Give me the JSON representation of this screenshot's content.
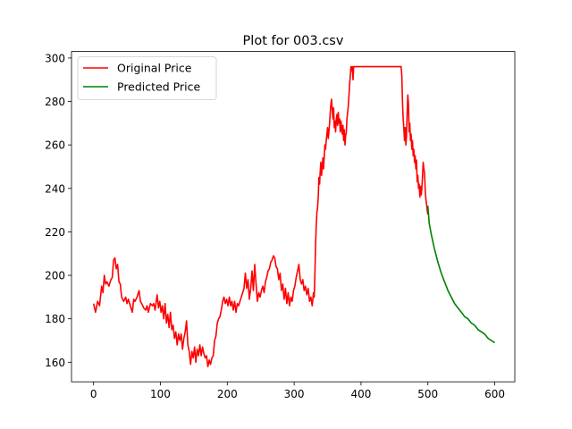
{
  "chart_data": {
    "type": "line",
    "title": "Plot for 003.csv",
    "xlabel": "",
    "ylabel": "",
    "xlim": [
      -33,
      630
    ],
    "ylim": [
      151,
      303
    ],
    "xticks": [
      0,
      100,
      200,
      300,
      400,
      500,
      600
    ],
    "yticks": [
      160,
      180,
      200,
      220,
      240,
      260,
      280,
      300
    ],
    "grid": false,
    "legend_position": "top-left",
    "series": [
      {
        "name": "Original Price",
        "color": "#ff0000",
        "points": [
          [
            0,
            187
          ],
          [
            3,
            183
          ],
          [
            6,
            188
          ],
          [
            9,
            186
          ],
          [
            12,
            195
          ],
          [
            14,
            192
          ],
          [
            16,
            200
          ],
          [
            18,
            196
          ],
          [
            20,
            197
          ],
          [
            23,
            195
          ],
          [
            26,
            198
          ],
          [
            28,
            199
          ],
          [
            30,
            207
          ],
          [
            32,
            208
          ],
          [
            34,
            203
          ],
          [
            36,
            205
          ],
          [
            38,
            197
          ],
          [
            40,
            196
          ],
          [
            42,
            190
          ],
          [
            45,
            188
          ],
          [
            48,
            190
          ],
          [
            50,
            187
          ],
          [
            52,
            189
          ],
          [
            55,
            186
          ],
          [
            58,
            183
          ],
          [
            60,
            189
          ],
          [
            62,
            188
          ],
          [
            65,
            190
          ],
          [
            68,
            193
          ],
          [
            70,
            188
          ],
          [
            72,
            187
          ],
          [
            75,
            185
          ],
          [
            78,
            184
          ],
          [
            80,
            186
          ],
          [
            82,
            183
          ],
          [
            85,
            187
          ],
          [
            88,
            186
          ],
          [
            90,
            187
          ],
          [
            92,
            184
          ],
          [
            95,
            191
          ],
          [
            97,
            185
          ],
          [
            99,
            188
          ],
          [
            101,
            183
          ],
          [
            103,
            186
          ],
          [
            105,
            180
          ],
          [
            107,
            187
          ],
          [
            109,
            178
          ],
          [
            111,
            182
          ],
          [
            113,
            176
          ],
          [
            115,
            183
          ],
          [
            117,
            175
          ],
          [
            119,
            177
          ],
          [
            121,
            171
          ],
          [
            123,
            174
          ],
          [
            125,
            168
          ],
          [
            127,
            173
          ],
          [
            129,
            170
          ],
          [
            131,
            173
          ],
          [
            133,
            166
          ],
          [
            135,
            171
          ],
          [
            137,
            174
          ],
          [
            139,
            179
          ],
          [
            141,
            168
          ],
          [
            143,
            165
          ],
          [
            145,
            159
          ],
          [
            147,
            165
          ],
          [
            149,
            162
          ],
          [
            151,
            167
          ],
          [
            153,
            160
          ],
          [
            155,
            166
          ],
          [
            157,
            163
          ],
          [
            159,
            168
          ],
          [
            161,
            163
          ],
          [
            163,
            167
          ],
          [
            165,
            164
          ],
          [
            167,
            162
          ],
          [
            169,
            163
          ],
          [
            171,
            158
          ],
          [
            173,
            161
          ],
          [
            175,
            159
          ],
          [
            177,
            162
          ],
          [
            179,
            163
          ],
          [
            181,
            170
          ],
          [
            183,
            172
          ],
          [
            185,
            178
          ],
          [
            187,
            180
          ],
          [
            189,
            181
          ],
          [
            191,
            184
          ],
          [
            193,
            188
          ],
          [
            195,
            190
          ],
          [
            197,
            187
          ],
          [
            199,
            189
          ],
          [
            201,
            186
          ],
          [
            203,
            190
          ],
          [
            205,
            186
          ],
          [
            207,
            188
          ],
          [
            209,
            184
          ],
          [
            211,
            188
          ],
          [
            213,
            183
          ],
          [
            215,
            187
          ],
          [
            217,
            186
          ],
          [
            219,
            188
          ],
          [
            221,
            190
          ],
          [
            223,
            192
          ],
          [
            225,
            194
          ],
          [
            227,
            201
          ],
          [
            229,
            194
          ],
          [
            231,
            198
          ],
          [
            233,
            189
          ],
          [
            235,
            194
          ],
          [
            237,
            202
          ],
          [
            239,
            193
          ],
          [
            241,
            205
          ],
          [
            243,
            196
          ],
          [
            245,
            188
          ],
          [
            247,
            192
          ],
          [
            249,
            190
          ],
          [
            251,
            193
          ],
          [
            253,
            195
          ],
          [
            255,
            192
          ],
          [
            257,
            197
          ],
          [
            259,
            199
          ],
          [
            261,
            202
          ],
          [
            263,
            203
          ],
          [
            265,
            206
          ],
          [
            267,
            207
          ],
          [
            269,
            209
          ],
          [
            271,
            208
          ],
          [
            273,
            204
          ],
          [
            275,
            203
          ],
          [
            277,
            198
          ],
          [
            279,
            201
          ],
          [
            281,
            193
          ],
          [
            283,
            196
          ],
          [
            285,
            189
          ],
          [
            287,
            194
          ],
          [
            289,
            187
          ],
          [
            291,
            192
          ],
          [
            293,
            186
          ],
          [
            295,
            190
          ],
          [
            297,
            188
          ],
          [
            299,
            193
          ],
          [
            301,
            195
          ],
          [
            303,
            199
          ],
          [
            305,
            202
          ],
          [
            307,
            205
          ],
          [
            309,
            198
          ],
          [
            311,
            196
          ],
          [
            313,
            198
          ],
          [
            315,
            193
          ],
          [
            317,
            195
          ],
          [
            319,
            191
          ],
          [
            321,
            194
          ],
          [
            323,
            188
          ],
          [
            325,
            190
          ],
          [
            327,
            186
          ],
          [
            329,
            192
          ],
          [
            330,
            190
          ],
          [
            331,
            200
          ],
          [
            332,
            214
          ],
          [
            333,
            223
          ],
          [
            334,
            229
          ],
          [
            335,
            231
          ],
          [
            336,
            236
          ],
          [
            337,
            245
          ],
          [
            338,
            242
          ],
          [
            339,
            248
          ],
          [
            340,
            252
          ],
          [
            341,
            246
          ],
          [
            342,
            250
          ],
          [
            343,
            254
          ],
          [
            344,
            249
          ],
          [
            345,
            255
          ],
          [
            346,
            260
          ],
          [
            347,
            258
          ],
          [
            348,
            262
          ],
          [
            349,
            265
          ],
          [
            350,
            268
          ],
          [
            351,
            263
          ],
          [
            352,
            266
          ],
          [
            353,
            270
          ],
          [
            354,
            275
          ],
          [
            355,
            279
          ],
          [
            356,
            281
          ],
          [
            357,
            276
          ],
          [
            358,
            272
          ],
          [
            359,
            277
          ],
          [
            360,
            268
          ],
          [
            361,
            271
          ],
          [
            362,
            266
          ],
          [
            363,
            272
          ],
          [
            364,
            274
          ],
          [
            365,
            269
          ],
          [
            366,
            275
          ],
          [
            367,
            270
          ],
          [
            368,
            272
          ],
          [
            369,
            266
          ],
          [
            370,
            271
          ],
          [
            371,
            268
          ],
          [
            372,
            265
          ],
          [
            373,
            269
          ],
          [
            374,
            262
          ],
          [
            375,
            267
          ],
          [
            376,
            260
          ],
          [
            377,
            264
          ],
          [
            378,
            266
          ],
          [
            379,
            272
          ],
          [
            380,
            275
          ],
          [
            381,
            278
          ],
          [
            382,
            283
          ],
          [
            383,
            288
          ],
          [
            384,
            292
          ],
          [
            385,
            296
          ],
          [
            386,
            294
          ],
          [
            387,
            296
          ],
          [
            388,
            290
          ],
          [
            389,
            296
          ],
          [
            390,
            296
          ],
          [
            395,
            296
          ],
          [
            400,
            296
          ],
          [
            410,
            296
          ],
          [
            420,
            296
          ],
          [
            430,
            296
          ],
          [
            440,
            296
          ],
          [
            450,
            296
          ],
          [
            455,
            296
          ],
          [
            459,
            296
          ],
          [
            460,
            296
          ],
          [
            461,
            292
          ],
          [
            462,
            280
          ],
          [
            463,
            272
          ],
          [
            464,
            268
          ],
          [
            465,
            262
          ],
          [
            466,
            268
          ],
          [
            467,
            260
          ],
          [
            468,
            264
          ],
          [
            469,
            275
          ],
          [
            470,
            283
          ],
          [
            471,
            279
          ],
          [
            472,
            266
          ],
          [
            473,
            270
          ],
          [
            474,
            262
          ],
          [
            475,
            265
          ],
          [
            476,
            258
          ],
          [
            477,
            262
          ],
          [
            478,
            255
          ],
          [
            479,
            258
          ],
          [
            480,
            252
          ],
          [
            481,
            255
          ],
          [
            482,
            249
          ],
          [
            483,
            253
          ],
          [
            484,
            243
          ],
          [
            485,
            246
          ],
          [
            486,
            240
          ],
          [
            487,
            242
          ],
          [
            488,
            236
          ],
          [
            489,
            241
          ],
          [
            490,
            237
          ],
          [
            491,
            240
          ],
          [
            492,
            246
          ],
          [
            493,
            252
          ],
          [
            494,
            249
          ],
          [
            495,
            247
          ],
          [
            496,
            239
          ],
          [
            497,
            235
          ],
          [
            498,
            233
          ],
          [
            499,
            230
          ],
          [
            500,
            228
          ]
        ]
      },
      {
        "name": "Predicted Price",
        "color": "#008000",
        "points": [
          [
            500,
            232
          ],
          [
            502,
            224
          ],
          [
            505,
            219
          ],
          [
            510,
            212
          ],
          [
            515,
            206
          ],
          [
            520,
            201
          ],
          [
            525,
            197
          ],
          [
            530,
            193
          ],
          [
            535,
            190
          ],
          [
            540,
            187
          ],
          [
            545,
            185
          ],
          [
            550,
            183
          ],
          [
            555,
            181
          ],
          [
            560,
            180
          ],
          [
            565,
            178
          ],
          [
            570,
            177
          ],
          [
            575,
            175
          ],
          [
            580,
            174
          ],
          [
            585,
            173
          ],
          [
            590,
            171
          ],
          [
            595,
            170
          ],
          [
            600,
            169
          ]
        ]
      }
    ]
  }
}
